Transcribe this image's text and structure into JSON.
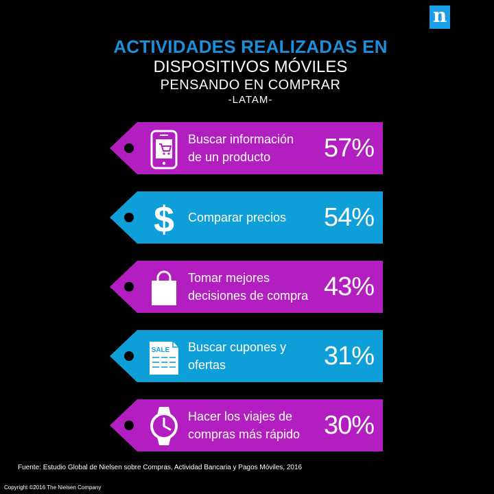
{
  "logo": {
    "letter": "n",
    "color": "#1b9ee5"
  },
  "title": {
    "line1": "ACTIVIDADES REALIZADAS EN",
    "line2": "DISPOSITIVOS MÓVILES",
    "line3": "PENSANDO EN COMPRAR",
    "line4": "-LATAM-"
  },
  "colors": {
    "magenta": "#b21ec0",
    "blue": "#0f9fd8",
    "title_blue": "#1b8fd9"
  },
  "chart_data": {
    "type": "bar",
    "categories": [
      "Buscar información de un producto",
      "Comparar precios",
      "Tomar mejores decisiones de compra",
      "Buscar cupones y ofertas",
      "Hacer los viajes de compras más rápido"
    ],
    "values": [
      57,
      54,
      43,
      31,
      30
    ],
    "value_labels": [
      "57%",
      "54%",
      "43%",
      "31%",
      "30%"
    ],
    "label_lines": [
      [
        "Buscar información",
        "de un producto"
      ],
      [
        "Comparar precios"
      ],
      [
        "Tomar mejores",
        "decisiones de compra"
      ],
      [
        "Buscar cupones y",
        "ofertas"
      ],
      [
        "Hacer los viajes de",
        "compras más rápido"
      ]
    ],
    "icons": [
      "smartphone-cart-icon",
      "dollar-icon",
      "shopping-bag-icon",
      "coupon-sale-icon",
      "watch-icon"
    ],
    "icon_text": {
      "coupon": "SALE"
    },
    "tag_colors": [
      "#b21ec0",
      "#0f9fd8",
      "#b21ec0",
      "#0f9fd8",
      "#b21ec0"
    ]
  },
  "footer": {
    "source": "Fuente: Estudio Global de Nielsen sobre Compras, Actividad Bancaria y Pagos Móviles, 2016",
    "copyright": "Copyright ©2016 The Nielsen Company"
  }
}
